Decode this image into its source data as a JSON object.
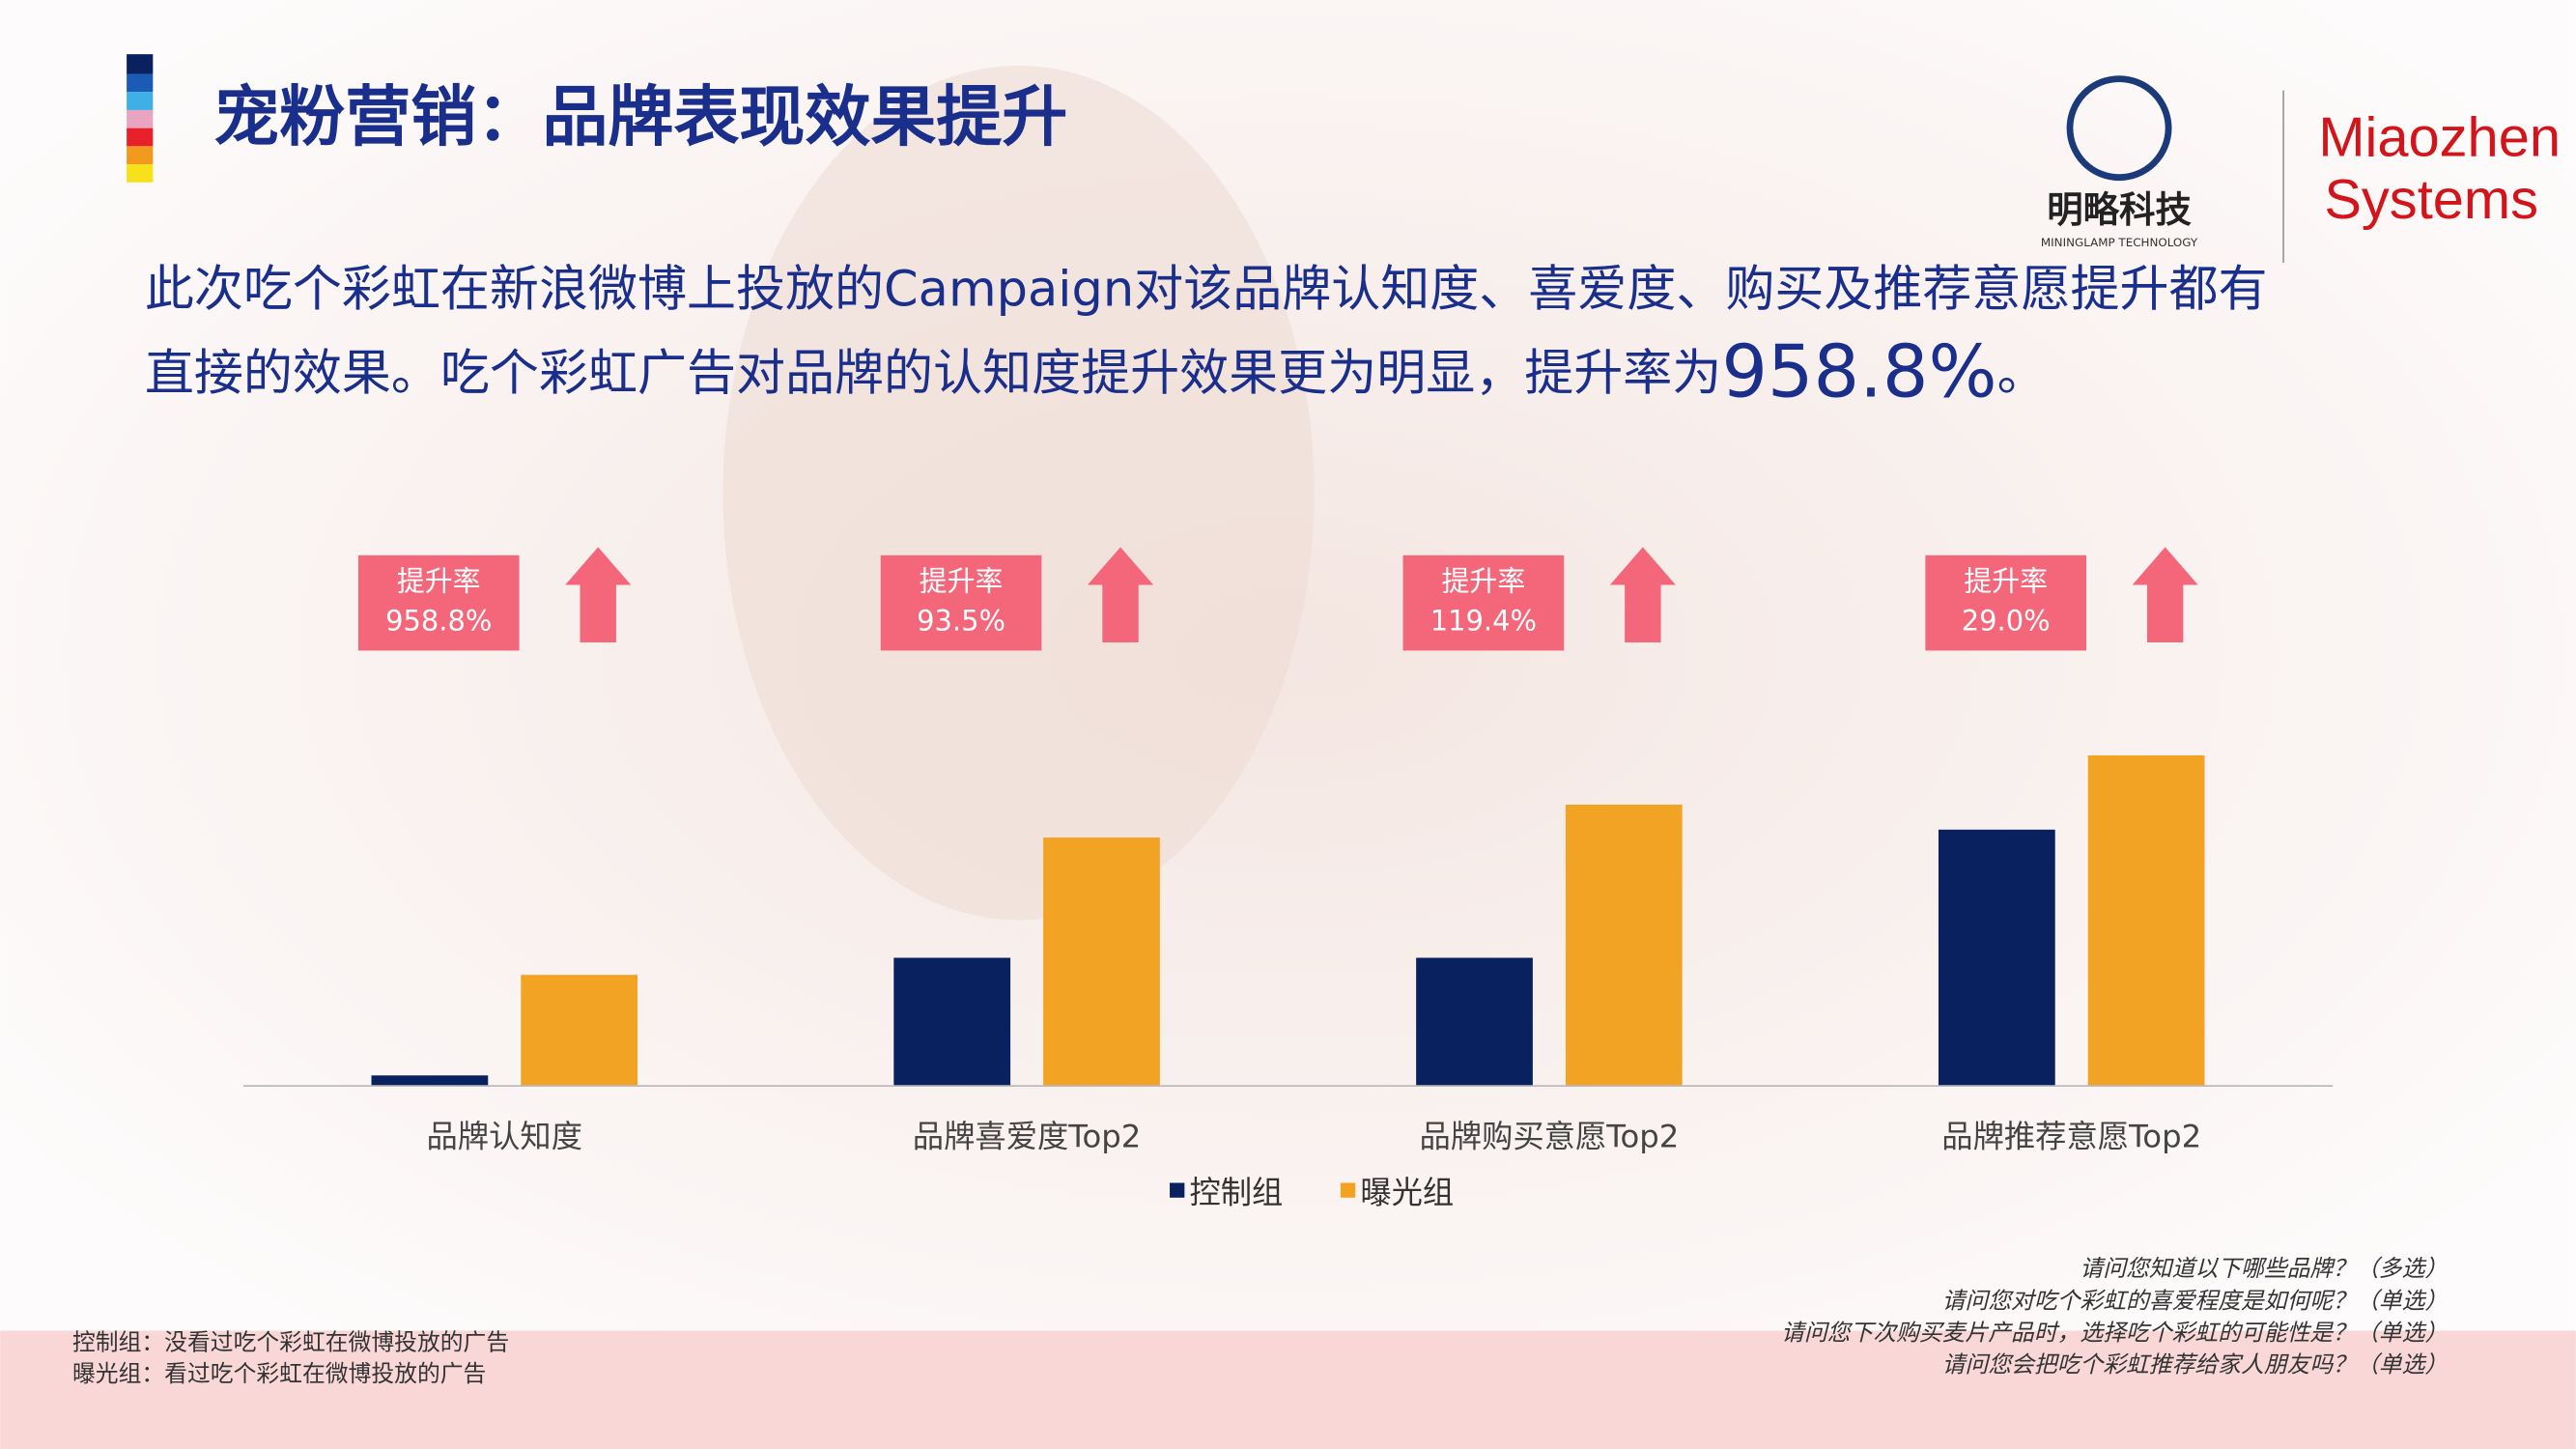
{
  "header": {
    "title": "宠粉营销：品牌表现效果提升"
  },
  "logos": {
    "mininglamp": "明略科技",
    "mininglamp_en": "MININGLAMP TECHNOLOGY",
    "miaozhen_1": "Miaozhen",
    "miaozhen_2": "Systems"
  },
  "description": {
    "line1": "此次吃个彩虹在新浪微博上投放的Campaign对该品牌认知度、喜爱度、购买及推荐意愿提升都有",
    "line2": "直接的效果。吃个彩虹广告对品牌的认知度提升效果更为明显，提升率为",
    "highlight": "958.8%",
    "tail": "。"
  },
  "chart_data": {
    "type": "bar",
    "categories": [
      "品牌认知度",
      "品牌喜爱度Top2",
      "品牌购买意愿Top2",
      "品牌推荐意愿Top2"
    ],
    "series": [
      {
        "name": "控制组",
        "color": "#0a2160",
        "values": [
          1.6,
          19.5,
          19.5,
          39
        ]
      },
      {
        "name": "曝光组",
        "color": "#f2a324",
        "values": [
          16.9,
          37.8,
          42.8,
          50.3
        ]
      }
    ],
    "ylim": [
      0,
      100
    ],
    "annotations": [
      {
        "label": "提升率",
        "text": "958.8%"
      },
      {
        "label": "提升率",
        "text": "93.5%"
      },
      {
        "label": "提升率",
        "text": "119.4%"
      },
      {
        "label": "提升率",
        "text": "29.0%"
      }
    ],
    "annotation_color": "#f4677a"
  },
  "footnotes": {
    "left": [
      "控制组：没看过吃个彩虹在微博投放的广告",
      "曝光组：看过吃个彩虹在微博投放的广告"
    ],
    "right": [
      "请问您知道以下哪些品牌？（多选）",
      "请问您对吃个彩虹的喜爱程度是如何呢？（单选）",
      "请问您下次购买麦片产品时，选择吃个彩虹的可能性是？（单选）",
      "请问您会把吃个彩虹推荐给家人朋友吗？（单选）"
    ]
  }
}
